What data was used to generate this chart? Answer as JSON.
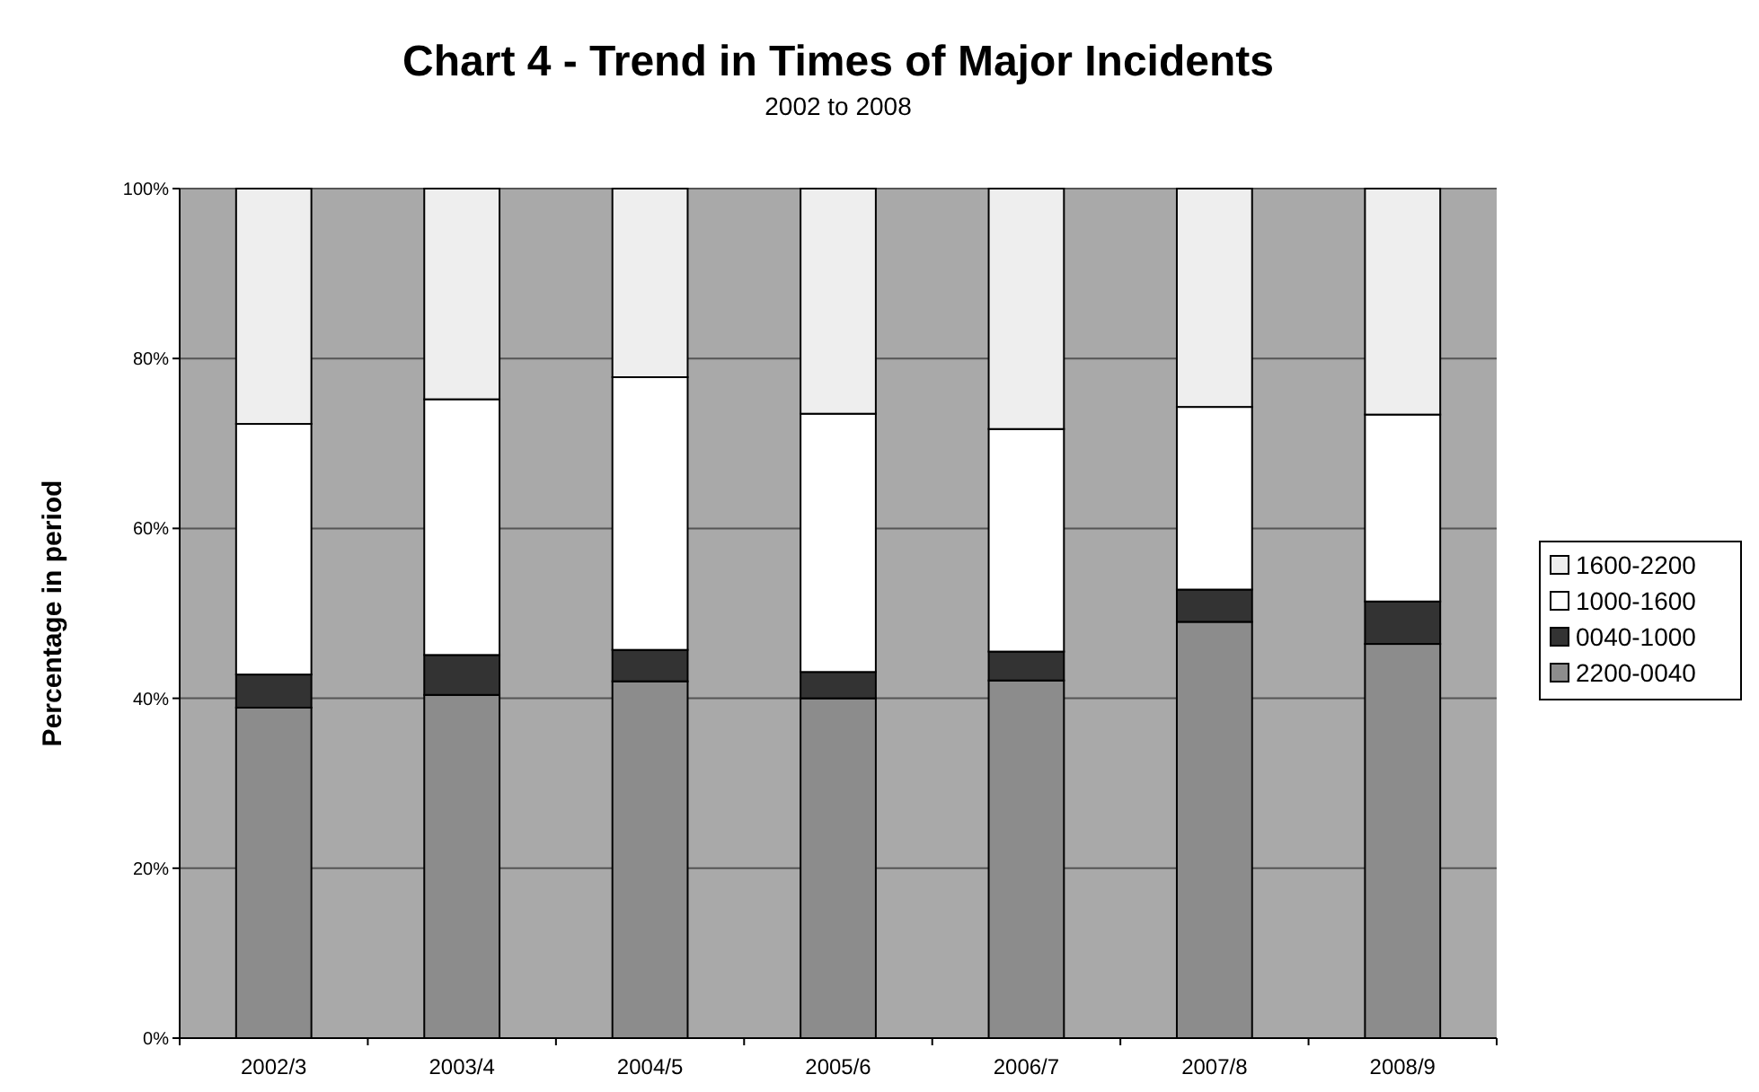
{
  "chart_data": {
    "type": "bar",
    "title": "Chart 4 - Trend in Times of Major Incidents",
    "subtitle": "2002 to 2008",
    "ylabel": "Percentage in period",
    "stacked": true,
    "categories": [
      "2002/3",
      "2003/4",
      "2004/5",
      "2005/6",
      "2006/7",
      "2007/8",
      "2008/9"
    ],
    "series": [
      {
        "name": "2200-0040",
        "color": "#8c8c8c",
        "values": [
          38.9,
          40.4,
          42.0,
          40.0,
          42.1,
          49.0,
          46.4
        ]
      },
      {
        "name": "0040-1000",
        "color": "#333333",
        "values": [
          3.9,
          4.7,
          3.7,
          3.1,
          3.4,
          3.8,
          5.0
        ]
      },
      {
        "name": "1000-1600",
        "color": "#ffffff",
        "values": [
          29.5,
          30.1,
          32.1,
          30.4,
          26.2,
          21.5,
          22.0
        ]
      },
      {
        "name": "1600-2200",
        "color": "#eeeeee",
        "values": [
          27.7,
          24.8,
          22.2,
          26.5,
          28.3,
          25.7,
          26.6
        ]
      }
    ],
    "ylim": [
      0,
      100
    ],
    "yticks": [
      {
        "value": 0,
        "label": "0%"
      },
      {
        "value": 20,
        "label": "20%"
      },
      {
        "value": 40,
        "label": "40%"
      },
      {
        "value": 60,
        "label": "60%"
      },
      {
        "value": 80,
        "label": "80%"
      },
      {
        "value": 100,
        "label": "100%"
      }
    ],
    "grid": "y",
    "legend": "right"
  }
}
